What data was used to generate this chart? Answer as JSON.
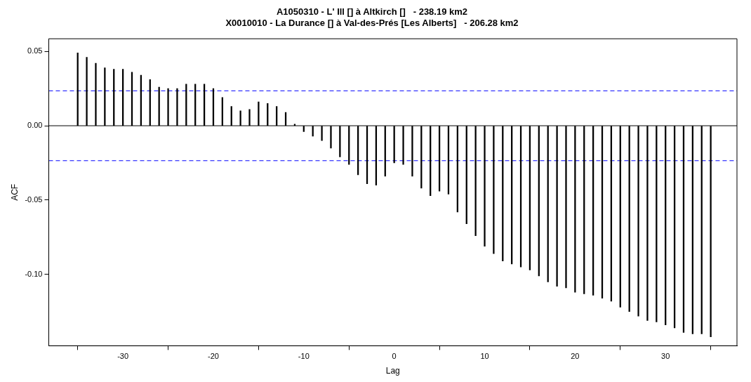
{
  "chart_data": {
    "type": "bar",
    "title": [
      "A1050310 - L' Ill [] à Altkirch []   - 238.19 km2",
      "X0010010 - La Durance [] à Val-des-Prés [Les Alberts]   - 206.28 km2"
    ],
    "xlabel": "Lag",
    "ylabel": "ACF",
    "x": [
      -35,
      -34,
      -33,
      -32,
      -31,
      -30,
      -29,
      -28,
      -27,
      -26,
      -25,
      -24,
      -23,
      -22,
      -21,
      -20,
      -19,
      -18,
      -17,
      -16,
      -15,
      -14,
      -13,
      -12,
      -11,
      -10,
      -9,
      -8,
      -7,
      -6,
      -5,
      -4,
      -3,
      -2,
      -1,
      0,
      1,
      2,
      3,
      4,
      5,
      6,
      7,
      8,
      9,
      10,
      11,
      12,
      13,
      14,
      15,
      16,
      17,
      18,
      19,
      20,
      21,
      22,
      23,
      24,
      25,
      26,
      27,
      28,
      29,
      30,
      31,
      32,
      33,
      34,
      35
    ],
    "values": [
      0.049,
      0.046,
      0.042,
      0.039,
      0.038,
      0.038,
      0.036,
      0.034,
      0.031,
      0.026,
      0.025,
      0.025,
      0.028,
      0.028,
      0.028,
      0.025,
      0.019,
      0.013,
      0.01,
      0.011,
      0.016,
      0.015,
      0.013,
      0.009,
      0.001,
      -0.004,
      -0.007,
      -0.01,
      -0.015,
      -0.021,
      -0.026,
      -0.033,
      -0.039,
      -0.04,
      -0.034,
      -0.025,
      -0.026,
      -0.034,
      -0.042,
      -0.047,
      -0.044,
      -0.046,
      -0.058,
      -0.066,
      -0.074,
      -0.081,
      -0.086,
      -0.091,
      -0.093,
      -0.095,
      -0.097,
      -0.101,
      -0.105,
      -0.108,
      -0.109,
      -0.112,
      -0.113,
      -0.114,
      -0.116,
      -0.118,
      -0.122,
      -0.125,
      -0.128,
      -0.131,
      -0.132,
      -0.134,
      -0.136,
      -0.139,
      -0.14,
      -0.14,
      -0.142
    ],
    "color": "#000000",
    "xlim": [
      -38.2,
      37.9
    ],
    "xticks": [
      -30,
      -20,
      -10,
      0,
      10,
      20,
      30
    ],
    "ylim": [
      -0.148,
      0.0585
    ],
    "yticks": [
      {
        "value": -0.1,
        "label": "-0.10"
      },
      {
        "value": -0.05,
        "label": "-0.05"
      },
      {
        "value": 0,
        "label": "0.00"
      },
      {
        "value": 0.05,
        "label": "0.05"
      }
    ],
    "ref_lines": [
      {
        "axis": "y",
        "value": 0,
        "color": "#000000",
        "line_style": "solid"
      },
      {
        "axis": "y",
        "value": 0.0235,
        "color": "#0000ff",
        "line_style": "dashed"
      },
      {
        "axis": "y",
        "value": -0.0235,
        "color": "#0000ff",
        "line_style": "dashed"
      }
    ],
    "grid": false,
    "legend": false
  }
}
